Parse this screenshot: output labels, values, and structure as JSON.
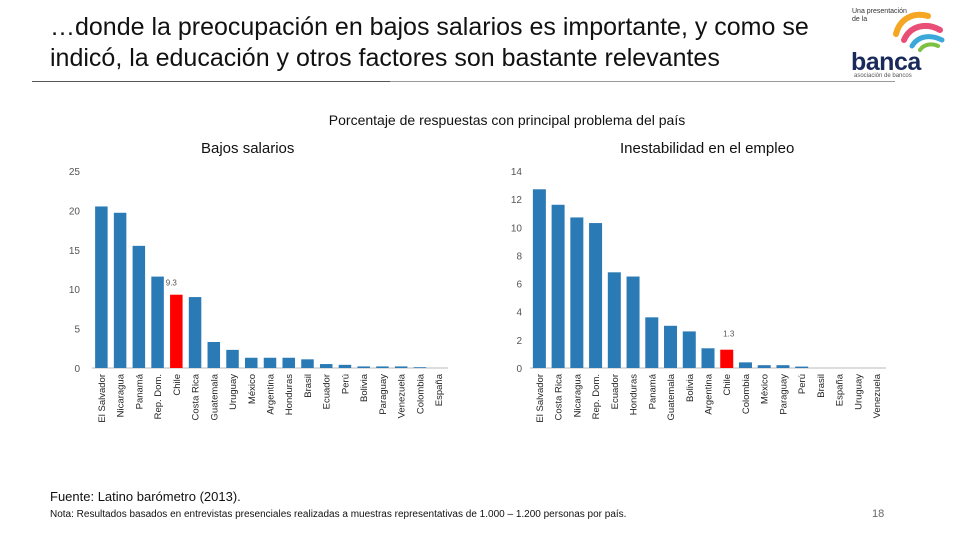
{
  "slide": {
    "title": "…donde la preocupación en bajos salarios es importante, y como se indicó, la educación y otros factores son bastante relevantes",
    "source": "Fuente: Latino barómetro (2013).",
    "note": "Nota: Resultados basados en entrevistas presenciales realizadas a muestras representativas de 1.000 – 1.200 personas por país.",
    "page_number": "18"
  },
  "logo": {
    "line1": "Una presentación",
    "line2": "de la",
    "word": "banca",
    "sub": "asociación de bancos"
  },
  "chart_data": [
    {
      "type": "bar",
      "title": "Bajos salarios",
      "supertitle": "Porcentaje de respuestas  con principal problema del país",
      "ylim": [
        0,
        25
      ],
      "yticks": [
        "0",
        "5",
        "10",
        "15",
        "20",
        "25"
      ],
      "categories": [
        "El Salvador",
        "Nicaragua",
        "Panamá",
        "Rep. Dom.",
        "Chile",
        "Costa Rica",
        "Guatemala",
        "Uruguay",
        "México",
        "Argentina",
        "Honduras",
        "Brasil",
        "Ecuador",
        "Perú",
        "Bolivia",
        "Paraguay",
        "Venezuela",
        "Colombia",
        "España"
      ],
      "values": [
        20.5,
        19.7,
        15.5,
        11.6,
        9.3,
        9.0,
        3.3,
        2.3,
        1.3,
        1.3,
        1.3,
        1.1,
        0.5,
        0.4,
        0.2,
        0.2,
        0.2,
        0.1,
        0.0
      ],
      "highlight": "Chile",
      "highlight_label": "9.3",
      "bar_color": "#2a7ab5",
      "highlight_color": "#ff0000"
    },
    {
      "type": "bar",
      "title": "Inestabilidad en el empleo",
      "ylim": [
        0,
        14
      ],
      "yticks": [
        "0",
        "2",
        "4",
        "6",
        "8",
        "10",
        "12",
        "14"
      ],
      "categories": [
        "El Salvador",
        "Costa Rica",
        "Nicaragua",
        "Rep. Dom.",
        "Ecuador",
        "Honduras",
        "Panamá",
        "Guatemala",
        "Bolivia",
        "Argentina",
        "Chile",
        "Colombia",
        "México",
        "Paraguay",
        "Perú",
        "Brasil",
        "España",
        "Uruguay",
        "Venezuela"
      ],
      "values": [
        12.7,
        11.6,
        10.7,
        10.3,
        6.8,
        6.5,
        3.6,
        3.0,
        2.6,
        1.4,
        1.3,
        0.4,
        0.2,
        0.2,
        0.1,
        0.0,
        0.0,
        0.0,
        0.0
      ],
      "highlight": "Chile",
      "highlight_label": "1.3",
      "bar_color": "#2a7ab5",
      "highlight_color": "#ff0000"
    }
  ]
}
